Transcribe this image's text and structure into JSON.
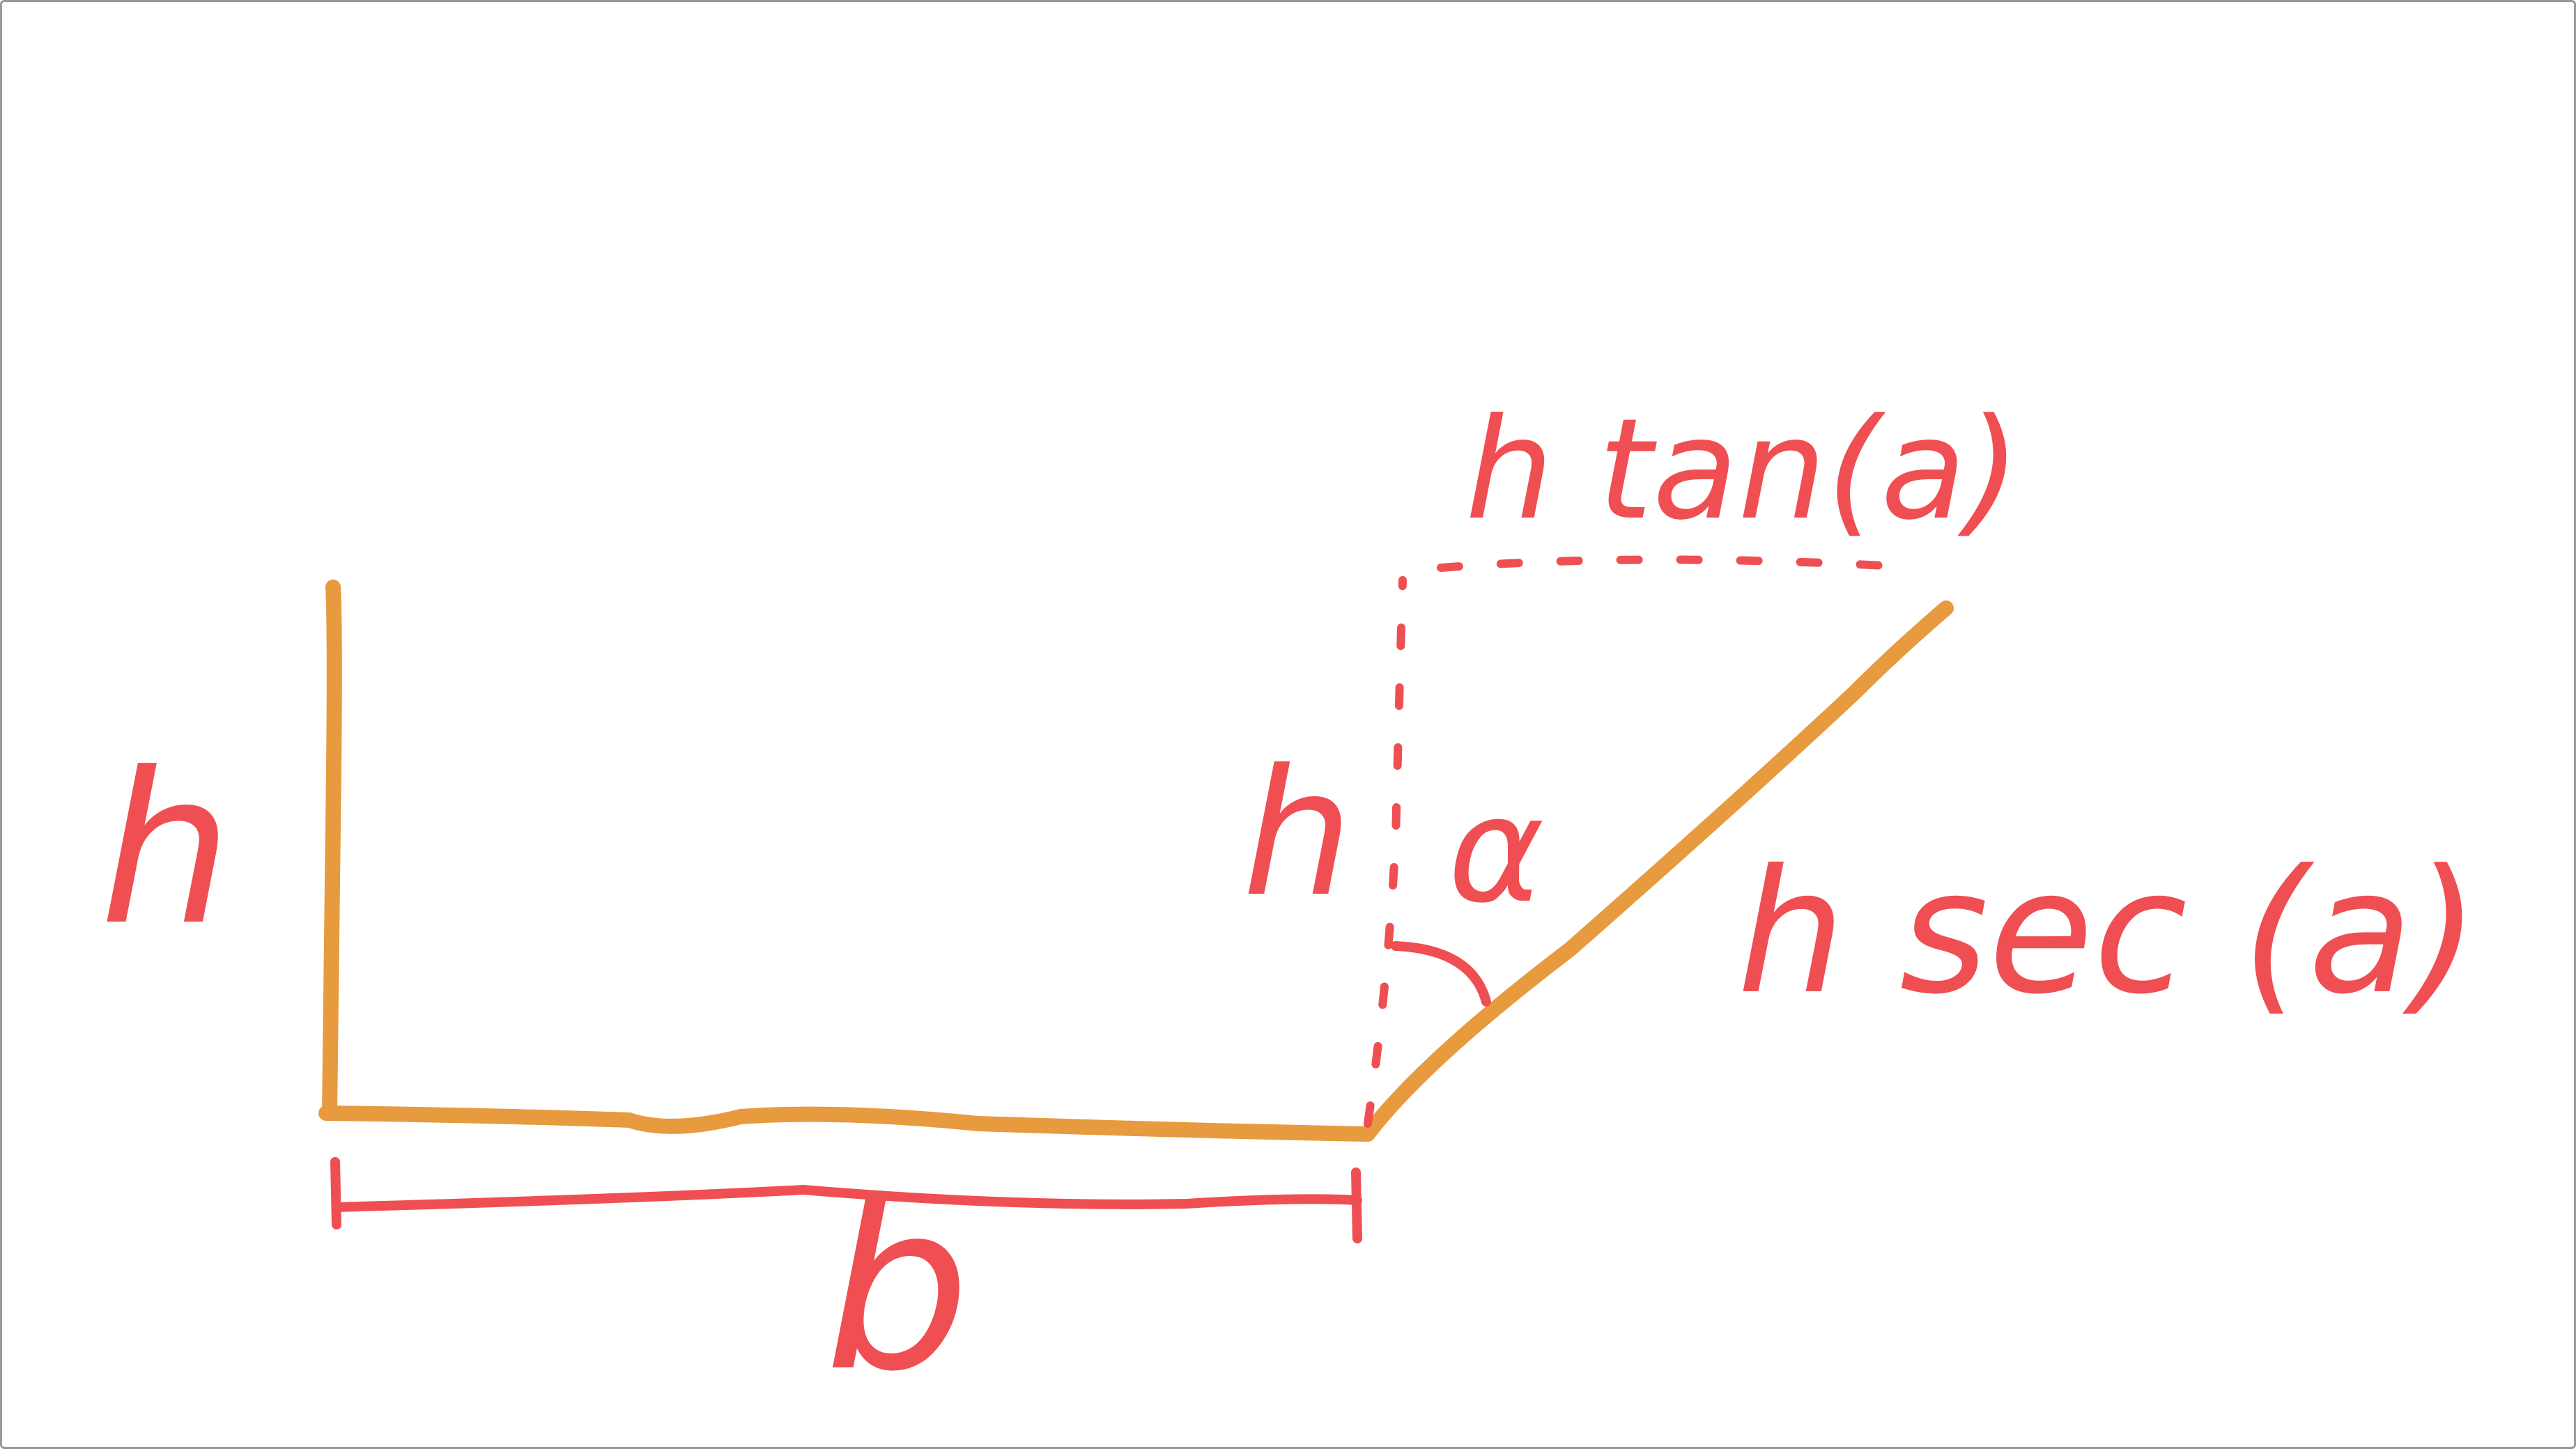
{
  "diagram": {
    "labels": {
      "height_left": "h",
      "height_right": "h",
      "base": "b",
      "angle": "α",
      "top_offset": "h tan(a)",
      "slant_length": "h sec (a)"
    },
    "colors": {
      "shape": "#e79a3e",
      "annotation": "#ef4f52",
      "background": "#ffffff"
    }
  }
}
